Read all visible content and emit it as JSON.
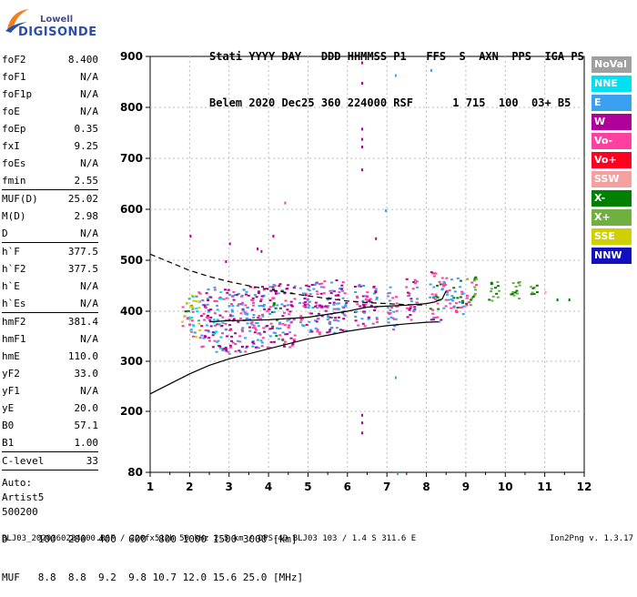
{
  "logo": {
    "brand_line1": "Lowell",
    "brand_line2": "DIGISONDE"
  },
  "header": {
    "line1": "Stati YYYY DAY   DDD HHMMSS P1   FFS  S  AXN  PPS  IGA PS",
    "line2": "Belem 2020 Dec25 360 224000 RSF      1 715  100  03+ B5"
  },
  "params": {
    "group1": [
      {
        "name": "foF2",
        "value": "8.400"
      },
      {
        "name": "foF1",
        "value": "N/A"
      },
      {
        "name": "foF1p",
        "value": "N/A"
      },
      {
        "name": "foE",
        "value": "N/A"
      },
      {
        "name": "foEp",
        "value": "0.35"
      },
      {
        "name": "fxI",
        "value": "9.25"
      },
      {
        "name": "foEs",
        "value": "N/A"
      },
      {
        "name": "fmin",
        "value": "2.55"
      }
    ],
    "group2": [
      {
        "name": "MUF(D)",
        "value": "25.02"
      },
      {
        "name": "M(D)",
        "value": "2.98"
      },
      {
        "name": "D",
        "value": "N/A"
      }
    ],
    "group3": [
      {
        "name": "h`F",
        "value": "377.5"
      },
      {
        "name": "h`F2",
        "value": "377.5"
      },
      {
        "name": "h`E",
        "value": "N/A"
      },
      {
        "name": "h`Es",
        "value": "N/A"
      }
    ],
    "group4": [
      {
        "name": "hmF2",
        "value": "381.4"
      },
      {
        "name": "hmF1",
        "value": "N/A"
      },
      {
        "name": "hmE",
        "value": "110.0"
      },
      {
        "name": "yF2",
        "value": "33.0"
      },
      {
        "name": "yF1",
        "value": "N/A"
      },
      {
        "name": "yE",
        "value": "20.0"
      },
      {
        "name": "B0",
        "value": "57.1"
      },
      {
        "name": "B1",
        "value": "1.00"
      }
    ],
    "group5": [
      {
        "name": "C-level",
        "value": "33"
      }
    ],
    "auto_lines": [
      "Auto:",
      "Artist5",
      "500200"
    ]
  },
  "legend": [
    {
      "label": "NoVal",
      "color": "#a0a0a0"
    },
    {
      "label": "NNE",
      "color": "#00e0f0"
    },
    {
      "label": "E",
      "color": "#3aa0f0"
    },
    {
      "label": "W",
      "color": "#b0009a"
    },
    {
      "label": "Vo-",
      "color": "#ff40a0"
    },
    {
      "label": "Vo+",
      "color": "#ff0020"
    },
    {
      "label": "SSW",
      "color": "#f5a0a0"
    },
    {
      "label": "X-",
      "color": "#008000"
    },
    {
      "label": "X+",
      "color": "#70b040"
    },
    {
      "label": "SSE",
      "color": "#d0d000"
    },
    {
      "label": "NNW",
      "color": "#1010c0"
    }
  ],
  "bottom": {
    "line1": "D     100  200  400  600  800 1000 1500 3000 [km]",
    "line2": "MUF   8.8  8.8  9.2  9.8 10.7 12.0 15.6 25.0 [MHz]"
  },
  "footer": {
    "left": "BLJ03_2020360224000.RSF / 220fx512h 50 kHz 2.5 km / DPS-4D BLJ03 103 / 1.4 S 311.6 E",
    "right": "Ion2Png v. 1.3.17"
  },
  "chart_data": {
    "type": "scatter",
    "x_ticks": [
      1,
      2,
      3,
      4,
      5,
      6,
      7,
      8,
      9,
      10,
      11,
      12
    ],
    "y_ticks": [
      80,
      200,
      300,
      400,
      500,
      600,
      700,
      800,
      900
    ],
    "xlim": [
      1,
      12
    ],
    "ylim_labels": [
      80,
      900
    ],
    "grid": "dashed vertical and horizontal",
    "curves": {
      "solid_lower": [
        [
          1.0,
          235
        ],
        [
          1.5,
          255
        ],
        [
          2.0,
          275
        ],
        [
          2.5,
          292
        ],
        [
          3.0,
          305
        ],
        [
          3.5,
          315
        ],
        [
          4.0,
          325
        ],
        [
          4.5,
          335
        ],
        [
          5.0,
          345
        ],
        [
          5.5,
          352
        ],
        [
          6.0,
          360
        ],
        [
          6.5,
          366
        ],
        [
          7.0,
          371
        ],
        [
          7.5,
          375
        ],
        [
          8.0,
          378
        ],
        [
          8.3,
          379
        ]
      ],
      "solid_profile": [
        [
          2.5,
          379
        ],
        [
          3.0,
          381
        ],
        [
          4.0,
          383
        ],
        [
          5.0,
          388
        ],
        [
          6.0,
          400
        ],
        [
          6.5,
          408
        ],
        [
          7.0,
          410
        ],
        [
          7.5,
          412
        ],
        [
          8.0,
          415
        ],
        [
          8.2,
          418
        ],
        [
          8.4,
          424
        ],
        [
          8.5,
          440
        ]
      ],
      "dashed_upper": [
        [
          1.0,
          512
        ],
        [
          1.5,
          496
        ],
        [
          2.0,
          480
        ],
        [
          2.5,
          468
        ],
        [
          3.0,
          458
        ],
        [
          3.5,
          450
        ],
        [
          4.0,
          443
        ],
        [
          4.5,
          436
        ],
        [
          5.0,
          430
        ],
        [
          5.5,
          425
        ],
        [
          6.0,
          420
        ],
        [
          6.5,
          417
        ],
        [
          7.0,
          415
        ],
        [
          7.5,
          413
        ],
        [
          8.0,
          412
        ]
      ]
    },
    "echo_columns": [
      {
        "f": 1.9,
        "ymin": 370,
        "ymax": 420,
        "colors": [
          "#008000",
          "#ff40a0",
          "#3aa0f0",
          "#d0d000"
        ]
      },
      {
        "f": 2.1,
        "ymin": 340,
        "ymax": 440,
        "colors": [
          "#3aa0f0",
          "#00e0f0",
          "#ff40a0",
          "#d0d000"
        ]
      },
      {
        "f": 2.4,
        "ymin": 330,
        "ymax": 445,
        "colors": [
          "#b0009a",
          "#3aa0f0",
          "#ff40a0"
        ]
      },
      {
        "f": 2.7,
        "ymin": 320,
        "ymax": 450,
        "colors": [
          "#b0009a",
          "#3aa0f0",
          "#ff40a0",
          "#00e0f0"
        ]
      },
      {
        "f": 3.0,
        "ymin": 315,
        "ymax": 450,
        "colors": [
          "#b0009a",
          "#3aa0f0",
          "#ff40a0"
        ]
      },
      {
        "f": 3.3,
        "ymin": 315,
        "ymax": 445,
        "colors": [
          "#b0009a",
          "#3aa0f0",
          "#ff40a0"
        ]
      },
      {
        "f": 3.6,
        "ymin": 320,
        "ymax": 450,
        "colors": [
          "#b0009a",
          "#3aa0f0",
          "#ff40a0"
        ]
      },
      {
        "f": 3.9,
        "ymin": 325,
        "ymax": 450,
        "colors": [
          "#b0009a",
          "#3aa0f0",
          "#ff40a0"
        ]
      },
      {
        "f": 4.2,
        "ymin": 330,
        "ymax": 460,
        "colors": [
          "#b0009a",
          "#3aa0f0",
          "#ff40a0",
          "#008000"
        ]
      },
      {
        "f": 4.5,
        "ymin": 330,
        "ymax": 460,
        "colors": [
          "#b0009a",
          "#3aa0f0",
          "#ff40a0"
        ]
      },
      {
        "f": 4.9,
        "ymin": 350,
        "ymax": 455,
        "colors": [
          "#3aa0f0",
          "#ff40a0",
          "#b0009a"
        ]
      },
      {
        "f": 5.2,
        "ymin": 355,
        "ymax": 460,
        "colors": [
          "#3aa0f0",
          "#ff40a0",
          "#b0009a"
        ]
      },
      {
        "f": 5.5,
        "ymin": 355,
        "ymax": 465,
        "colors": [
          "#3aa0f0",
          "#ff40a0",
          "#b0009a"
        ]
      },
      {
        "f": 5.8,
        "ymin": 360,
        "ymax": 470,
        "colors": [
          "#3aa0f0",
          "#ff40a0",
          "#b0009a"
        ]
      },
      {
        "f": 6.3,
        "ymin": 370,
        "ymax": 460,
        "colors": [
          "#ff40a0",
          "#3aa0f0",
          "#b0009a"
        ]
      },
      {
        "f": 6.6,
        "ymin": 370,
        "ymax": 455,
        "colors": [
          "#ff40a0",
          "#b0009a",
          "#3aa0f0"
        ]
      },
      {
        "f": 7.1,
        "ymin": 365,
        "ymax": 450,
        "colors": [
          "#ff40a0",
          "#3aa0f0"
        ]
      },
      {
        "f": 7.6,
        "ymin": 380,
        "ymax": 465,
        "colors": [
          "#ff40a0",
          "#3aa0f0",
          "#b0009a"
        ]
      },
      {
        "f": 8.2,
        "ymin": 380,
        "ymax": 480,
        "colors": [
          "#ff40a0",
          "#3aa0f0",
          "#008000",
          "#b0009a"
        ]
      },
      {
        "f": 8.5,
        "ymin": 400,
        "ymax": 470,
        "colors": [
          "#3aa0f0",
          "#ff40a0"
        ]
      },
      {
        "f": 8.8,
        "ymin": 395,
        "ymax": 470,
        "colors": [
          "#008000",
          "#ff40a0",
          "#3aa0f0"
        ]
      },
      {
        "f": 9.1,
        "ymin": 400,
        "ymax": 470,
        "colors": [
          "#008000",
          "#70b040",
          "#ff40a0"
        ]
      },
      {
        "f": 9.7,
        "ymin": 420,
        "ymax": 460,
        "colors": [
          "#008000",
          "#70b040"
        ]
      },
      {
        "f": 10.2,
        "ymin": 420,
        "ymax": 460,
        "colors": [
          "#008000",
          "#70b040"
        ]
      },
      {
        "f": 10.7,
        "ymin": 430,
        "ymax": 455,
        "colors": [
          "#008000",
          "#70b040"
        ]
      }
    ],
    "isolated_points": [
      {
        "f": 6.35,
        "h": 890,
        "color": "#b0009a"
      },
      {
        "f": 6.35,
        "h": 850,
        "color": "#b0009a"
      },
      {
        "f": 6.35,
        "h": 760,
        "color": "#b0009a"
      },
      {
        "f": 6.35,
        "h": 740,
        "color": "#b0009a"
      },
      {
        "f": 6.35,
        "h": 725,
        "color": "#b0009a"
      },
      {
        "f": 6.35,
        "h": 680,
        "color": "#b0009a"
      },
      {
        "f": 6.35,
        "h": 195,
        "color": "#b0009a"
      },
      {
        "f": 6.35,
        "h": 180,
        "color": "#b0009a"
      },
      {
        "f": 6.35,
        "h": 160,
        "color": "#b0009a"
      },
      {
        "f": 7.2,
        "h": 865,
        "color": "#3aa0f0"
      },
      {
        "f": 8.1,
        "h": 875,
        "color": "#3aa0f0"
      },
      {
        "f": 7.2,
        "h": 270,
        "color": "#3aa0f0"
      },
      {
        "f": 7.25,
        "h": 80,
        "color": "#3aa0f0"
      },
      {
        "f": 6.95,
        "h": 600,
        "color": "#3aa0f0"
      },
      {
        "f": 3.7,
        "h": 525,
        "color": "#b0009a"
      },
      {
        "f": 3.8,
        "h": 520,
        "color": "#b0009a"
      },
      {
        "f": 4.1,
        "h": 550,
        "color": "#b0009a"
      },
      {
        "f": 3.0,
        "h": 535,
        "color": "#b0009a"
      },
      {
        "f": 2.9,
        "h": 500,
        "color": "#b0009a"
      },
      {
        "f": 4.4,
        "h": 615,
        "color": "#ff40a0"
      },
      {
        "f": 2.0,
        "h": 550,
        "color": "#b0009a"
      },
      {
        "f": 11.3,
        "h": 425,
        "color": "#008000"
      },
      {
        "f": 11.6,
        "h": 425,
        "color": "#008000"
      },
      {
        "f": 11.0,
        "h": 440,
        "color": "#f5a0a0"
      },
      {
        "f": 6.7,
        "h": 545,
        "color": "#b0009a"
      }
    ]
  }
}
